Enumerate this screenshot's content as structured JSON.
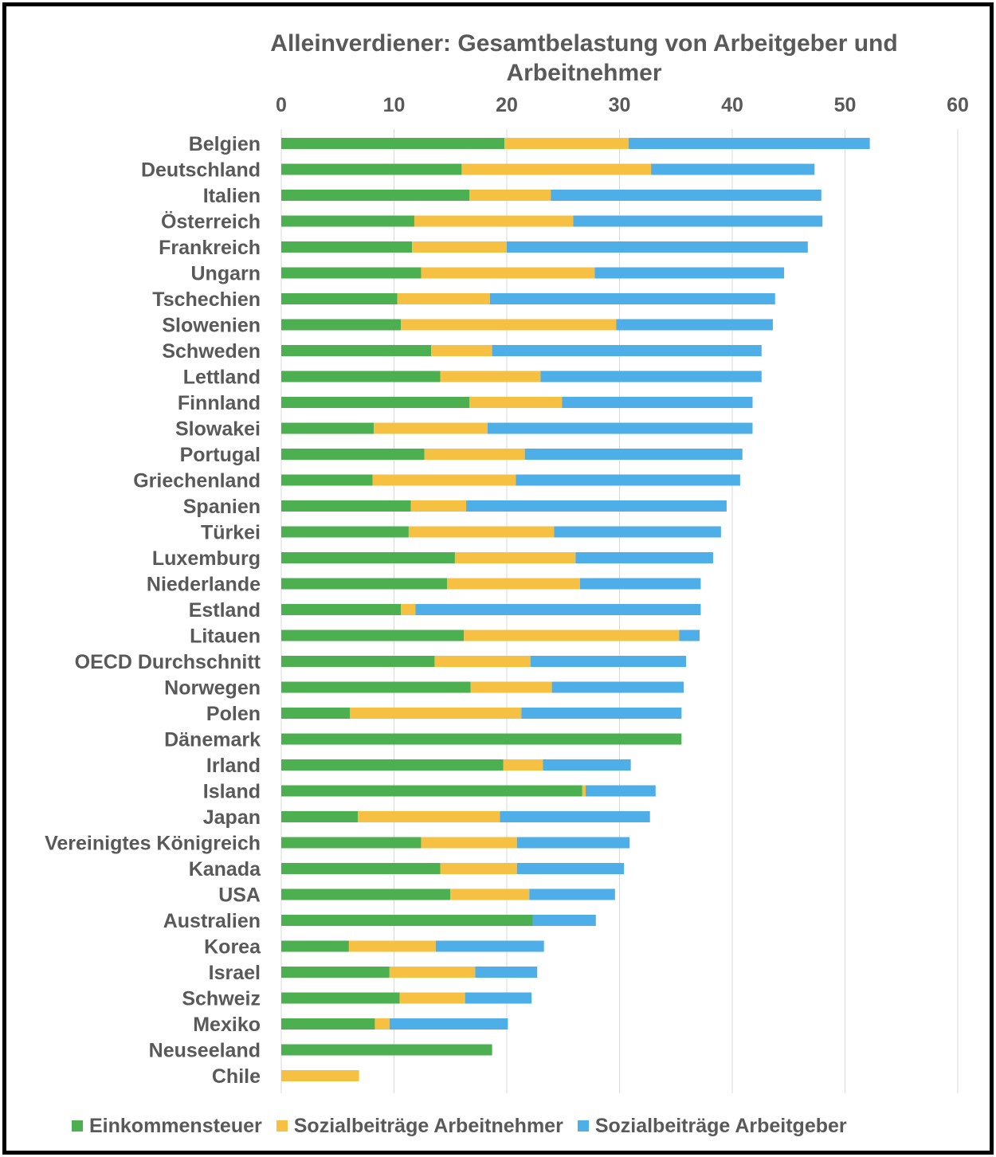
{
  "chart_data": {
    "type": "bar",
    "orientation": "horizontal",
    "stacked": true,
    "title": "Alleinverdiener: Gesamtbelastung von Arbeitgeber und Arbeitnehmer",
    "title_lines": [
      "Alleinverdiener: Gesamtbelastung von Arbeitgeber und",
      "Arbeitnehmer"
    ],
    "xlim": [
      0,
      60
    ],
    "x_ticks": [
      0,
      10,
      20,
      30,
      40,
      50,
      60
    ],
    "x_axis_position": "top",
    "grid": true,
    "legend_position": "bottom",
    "categories": [
      "Belgien",
      "Deutschland",
      "Italien",
      "Österreich",
      "Frankreich",
      "Ungarn",
      "Tschechien",
      "Slowenien",
      "Schweden",
      "Lettland",
      "Finnland",
      "Slowakei",
      "Portugal",
      "Griechenland",
      "Spanien",
      "Türkei",
      "Luxemburg",
      "Niederlande",
      "Estland",
      "Litauen",
      "OECD Durchschnitt",
      "Norwegen",
      "Polen",
      "Dänemark",
      "Irland",
      "Island",
      "Japan",
      "Vereinigtes Königreich",
      "Kanada",
      "USA",
      "Australien",
      "Korea",
      "Israel",
      "Schweiz",
      "Mexiko",
      "Neuseeland",
      "Chile"
    ],
    "series": [
      {
        "name": "Einkommensteuer",
        "color": "#4caf50",
        "values": [
          19.8,
          16.0,
          16.7,
          11.8,
          11.6,
          12.4,
          10.3,
          10.6,
          13.3,
          14.1,
          16.7,
          8.2,
          12.7,
          8.1,
          11.5,
          11.3,
          15.4,
          14.7,
          10.6,
          16.2,
          13.6,
          16.8,
          6.1,
          35.5,
          19.7,
          26.7,
          6.8,
          12.4,
          14.1,
          15.0,
          22.3,
          6.0,
          9.6,
          10.5,
          8.3,
          18.7,
          0
        ]
      },
      {
        "name": "Sozialbeiträge Arbeitnehmer",
        "color": "#f6c143",
        "values": [
          11.0,
          16.8,
          7.2,
          14.1,
          8.4,
          15.4,
          8.2,
          19.1,
          5.4,
          8.9,
          8.2,
          10.1,
          8.9,
          12.7,
          4.9,
          12.9,
          10.7,
          11.8,
          1.3,
          19.1,
          8.5,
          7.2,
          15.2,
          0,
          3.5,
          0.3,
          12.6,
          8.5,
          6.8,
          7.0,
          0,
          7.7,
          7.6,
          5.8,
          1.3,
          0,
          6.9
        ]
      },
      {
        "name": "Sozialbeiträge Arbeitgeber",
        "color": "#4daee8",
        "values": [
          21.4,
          14.5,
          24.0,
          22.1,
          26.7,
          16.8,
          25.3,
          13.9,
          23.9,
          19.6,
          16.9,
          23.5,
          19.3,
          19.9,
          23.1,
          14.8,
          12.2,
          10.7,
          25.3,
          1.8,
          13.8,
          11.7,
          14.2,
          0,
          7.8,
          6.2,
          13.3,
          10.0,
          9.5,
          7.6,
          5.6,
          9.6,
          5.5,
          5.9,
          10.5,
          0,
          0
        ]
      }
    ]
  }
}
